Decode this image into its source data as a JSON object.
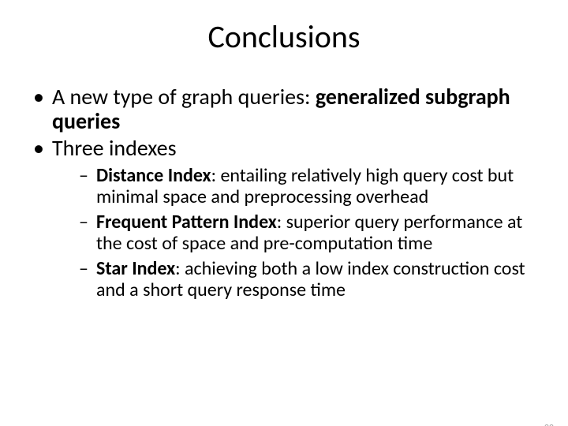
{
  "title": "Conclusions",
  "bullets": {
    "b1_pre": "A new type of graph queries: ",
    "b1_bold": "generalized subgraph queries",
    "b2": "Three indexes",
    "sub1_bold": "Distance Index",
    "sub1_rest": ": entailing relatively high query cost but minimal space and preprocessing overhead",
    "sub2_bold": "Frequent Pattern Index",
    "sub2_rest": ": superior query performance at the cost of space and pre-computation time",
    "sub3_bold": "Star Index",
    "sub3_rest": ": achieving both a low index construction cost and a short query response time"
  },
  "page_number": "22",
  "style": {
    "background_color": "#ffffff",
    "text_color": "#000000",
    "pagenum_color": "#a6a6a6",
    "title_fontsize": 40,
    "level1_fontsize": 28,
    "level2_fontsize": 24,
    "font_family": "Calibri"
  }
}
